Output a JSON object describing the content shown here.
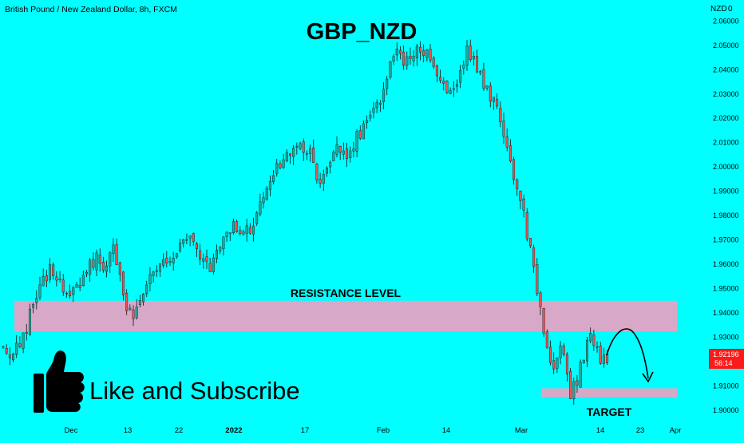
{
  "header": {
    "symbol_info": "British Pound / New Zealand Dollar, 8h, FXCM",
    "title": "GBP_NZD"
  },
  "price_scale": {
    "currency_label": "NZD",
    "currency_marker": "0"
  },
  "price_tag": {
    "price": "1.92196",
    "countdown": "56:14"
  },
  "annotations": {
    "resistance_label": "RESISTANCE LEVEL",
    "target_label": "TARGET",
    "cta_text": "Like and Subscribe"
  },
  "zones": {
    "resistance": [
      1.9322,
      1.9448
    ],
    "target": [
      1.9051,
      1.9088
    ]
  },
  "colors": {
    "background": "#00ffff",
    "bull_candle": "#26a69a",
    "bear_candle": "#ef5350",
    "wick": "#111111",
    "zone_fill": "#d8a8c8",
    "price_tag": "#ff1a1a",
    "text": "#000000"
  },
  "icons": {
    "thumbs_up": "thumbs-up-icon",
    "arrow": "curved-arrow-icon"
  },
  "chart_data": {
    "type": "candlestick",
    "timeframe": "8h",
    "ylim": [
      1.8955,
      2.0685
    ],
    "y_ticks": [
      "2.06000",
      "2.05000",
      "2.04000",
      "2.03000",
      "2.02000",
      "2.01000",
      "2.00000",
      "1.99000",
      "1.98000",
      "1.97000",
      "1.96000",
      "1.95000",
      "1.94000",
      "1.93000",
      "1.91000",
      "1.90000"
    ],
    "x_ticks": [
      "Dec",
      "13",
      "22",
      "2022",
      "17",
      "Feb",
      "14",
      "Mar",
      "14",
      "23",
      "Apr"
    ],
    "close_path": [
      1.925,
      1.922,
      1.928,
      1.94,
      1.95,
      1.958,
      1.955,
      1.944,
      1.95,
      1.958,
      1.962,
      1.958,
      1.966,
      1.945,
      1.938,
      1.948,
      1.955,
      1.96,
      1.958,
      1.966,
      1.97,
      1.962,
      1.958,
      1.964,
      1.972,
      1.976,
      1.972,
      1.978,
      1.985,
      1.995,
      2.003,
      2.006,
      2.01,
      2.005,
      1.995,
      2.002,
      2.008,
      2.003,
      2.012,
      2.016,
      2.022,
      2.032,
      2.048,
      2.042,
      2.045,
      2.05,
      2.044,
      2.038,
      2.03,
      2.038,
      2.048,
      2.04,
      2.032,
      2.025,
      2.01,
      1.995,
      1.98,
      1.96,
      1.935,
      1.915,
      1.928,
      1.905,
      1.915,
      1.932,
      1.922,
      1.921
    ]
  }
}
